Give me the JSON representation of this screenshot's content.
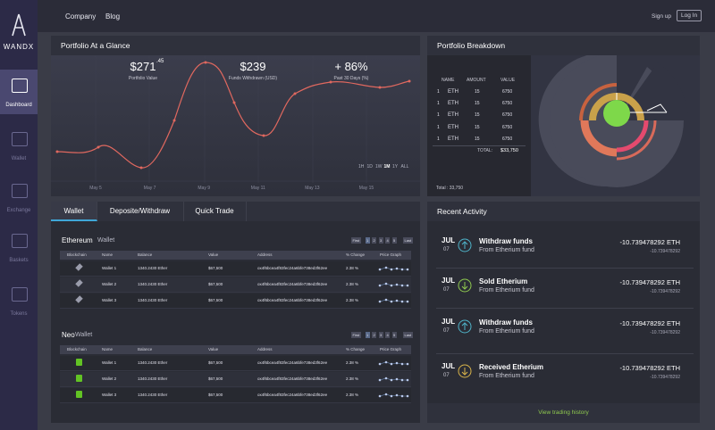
{
  "brand": "WANDX",
  "sidebar": {
    "items": [
      "Dashboard",
      "Wallet",
      "Exchange",
      "Baskets",
      "Tokens"
    ],
    "active": "Dashboard"
  },
  "nav": {
    "links": [
      "Company",
      "Blog"
    ],
    "signup": "Sign up",
    "login": "Log In"
  },
  "glance": {
    "title": "Portfolio At a Glance",
    "stats": [
      {
        "value": "$271",
        "fraction": ".45",
        "label": "Portfolio Value"
      },
      {
        "value": "$239",
        "label": "Funds Withdrawn (USD)"
      },
      {
        "value": "+ 86%",
        "label": "Past 30 Days (%)"
      }
    ],
    "dates": [
      "May 5",
      "May 7",
      "May 9",
      "May 11",
      "May 13",
      "May 15"
    ],
    "ranges": [
      "1H",
      "1D",
      "1W",
      "1M",
      "1Y",
      "ALL"
    ],
    "active_range": "1M"
  },
  "breakdown": {
    "title": "Portfolio Breakdown",
    "columns": [
      "NAME",
      "AMOUNT",
      "VALUE"
    ],
    "rows": [
      [
        "1",
        "ETH",
        "15",
        "6750"
      ],
      [
        "1",
        "ETH",
        "15",
        "6750"
      ],
      [
        "1",
        "ETH",
        "15",
        "6750"
      ],
      [
        "1",
        "ETH",
        "15",
        "6750"
      ],
      [
        "1",
        "ETH",
        "15",
        "6750"
      ]
    ],
    "total_label": "TOTAL:",
    "total": "$33,750",
    "footer": "Total : 33,750"
  },
  "tabs": {
    "items": [
      "Wallet",
      "Deposite/Withdraw",
      "Quick Trade"
    ],
    "active": "Wallet"
  },
  "wallets": [
    {
      "name": "Ethereum",
      "suffix": "Wallet",
      "icon": "eth",
      "pager": [
        "First",
        "1",
        "2",
        "3",
        "4",
        "5",
        "Last"
      ],
      "columns": [
        "Blockchain",
        "Name",
        "Balance",
        "Value",
        "Address",
        "% Change",
        "Price Graph"
      ],
      "rows": [
        {
          "name": "Wallet 1",
          "balance": "1340.2430 Ether",
          "value": "$67,500",
          "address": "ox4f6bcea4f83fec24a6bfe738ed3f62ee",
          "change": "2.38 %"
        },
        {
          "name": "Wallet 2",
          "balance": "1340.2430 Ether",
          "value": "$67,500",
          "address": "ox4f6bcea4f83fec24a6bfe738ed3f62ee",
          "change": "2.38 %"
        },
        {
          "name": "Wallet 3",
          "balance": "1340.2430 Ether",
          "value": "$67,500",
          "address": "ox4f6bcea4f83fec24a6bfe738ed3f62ee",
          "change": "2.38 %"
        }
      ]
    },
    {
      "name": "Neo",
      "suffix": "Wallet",
      "icon": "neo",
      "pager": [
        "First",
        "1",
        "2",
        "3",
        "4",
        "5",
        "Last"
      ],
      "columns": [
        "Blockchain",
        "Name",
        "Balance",
        "Value",
        "Address",
        "% Change",
        "Price Graph"
      ],
      "rows": [
        {
          "name": "Wallet 1",
          "balance": "1340.2430 Ether",
          "value": "$67,500",
          "address": "ox4f6bcea4f83fec24a6bfe738ed3f62ee",
          "change": "2.38 %"
        },
        {
          "name": "Wallet 2",
          "balance": "1340.2430 Ether",
          "value": "$67,500",
          "address": "ox4f6bcea4f83fec24a6bfe738ed3f62ee",
          "change": "2.38 %"
        },
        {
          "name": "Wallet 3",
          "balance": "1340.2430 Ether",
          "value": "$67,500",
          "address": "ox4f6bcea4f83fec24a6bfe738ed3f62ee",
          "change": "2.38 %"
        }
      ]
    }
  ],
  "activity": {
    "title": "Recent Activity",
    "items": [
      {
        "month": "JUL",
        "day": "07",
        "title": "Withdraw funds",
        "source": "From Etherium fund",
        "amount": "-10.739478292 ETH",
        "sub": "-10.739478292",
        "dir": "up",
        "color": "#4fb3c9"
      },
      {
        "month": "JUL",
        "day": "07",
        "title": "Sold Etherium",
        "source": "From Etherium fund",
        "amount": "-10.739478292 ETH",
        "sub": "-10.739478292",
        "dir": "down",
        "color": "#8fc94f"
      },
      {
        "month": "JUL",
        "day": "07",
        "title": "Withdraw funds",
        "source": "From Etherium fund",
        "amount": "-10.739478292 ETH",
        "sub": "-10.739478292",
        "dir": "up",
        "color": "#4fb3c9"
      },
      {
        "month": "JUL",
        "day": "07",
        "title": "Received Etherium",
        "source": "From Etherium fund",
        "amount": "-10.739478292 ETH",
        "sub": "-10.739478292",
        "dir": "down",
        "color": "#d8b34a"
      }
    ],
    "link": "View trading history"
  }
}
